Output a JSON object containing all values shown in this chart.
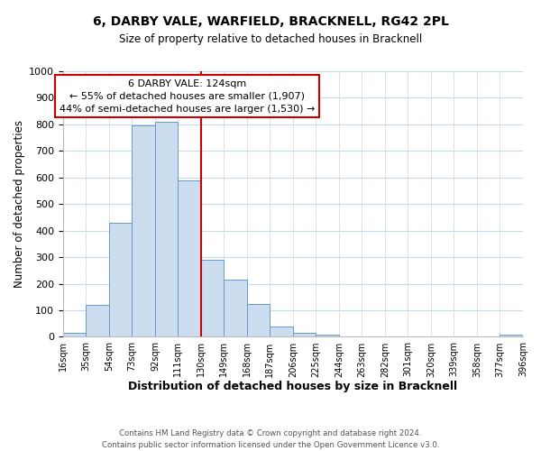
{
  "title": "6, DARBY VALE, WARFIELD, BRACKNELL, RG42 2PL",
  "subtitle": "Size of property relative to detached houses in Bracknell",
  "xlabel": "Distribution of detached houses by size in Bracknell",
  "ylabel": "Number of detached properties",
  "bar_labels": [
    "16sqm",
    "35sqm",
    "54sqm",
    "73sqm",
    "92sqm",
    "111sqm",
    "130sqm",
    "149sqm",
    "168sqm",
    "187sqm",
    "206sqm",
    "225sqm",
    "244sqm",
    "263sqm",
    "282sqm",
    "301sqm",
    "320sqm",
    "339sqm",
    "358sqm",
    "377sqm",
    "396sqm"
  ],
  "bar_values": [
    15,
    120,
    430,
    795,
    810,
    590,
    290,
    215,
    125,
    40,
    15,
    8,
    3,
    3,
    0,
    0,
    0,
    0,
    0,
    10
  ],
  "bar_color": "#ccddf0",
  "bar_edge_color": "#6699cc",
  "vline_x_idx": 5,
  "vline_color": "#cc0000",
  "ylim": [
    0,
    1000
  ],
  "yticks": [
    0,
    100,
    200,
    300,
    400,
    500,
    600,
    700,
    800,
    900,
    1000
  ],
  "annotation_title": "6 DARBY VALE: 124sqm",
  "annotation_line1": "← 55% of detached houses are smaller (1,907)",
  "annotation_line2": "44% of semi-detached houses are larger (1,530) →",
  "annotation_box_color": "#ffffff",
  "annotation_box_edgecolor": "#cc0000",
  "footer_line1": "Contains HM Land Registry data © Crown copyright and database right 2024.",
  "footer_line2": "Contains public sector information licensed under the Open Government Licence v3.0.",
  "background_color": "#ffffff",
  "grid_color": "#c8d8e8"
}
